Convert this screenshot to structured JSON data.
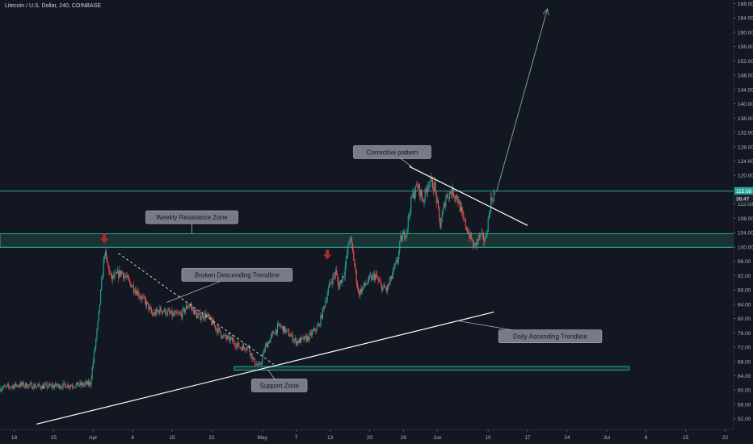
{
  "symbol_title": "Litecoin / U.S. Dollar, 240, COINBASE",
  "colors": {
    "background": "#131722",
    "up": "#26a69a",
    "down": "#ef5350",
    "zone_stroke": "#26a69a",
    "zone_fill": "#1b3433",
    "axis_text": "#b2b5be",
    "trend_white": "#ffffff",
    "arrow": "#7a9e8e",
    "callout_fill": "#787b86",
    "callout_text": "#131722",
    "price_tag_1": "#26a69a",
    "price_tag_2": "#1e222d"
  },
  "chart_data": {
    "type": "candlestick",
    "x_axis": {
      "ticks": [
        {
          "label": "18",
          "day": -14
        },
        {
          "label": "25",
          "day": -7
        },
        {
          "label": "Apr",
          "day": 0
        },
        {
          "label": "8",
          "day": 7
        },
        {
          "label": "15",
          "day": 14
        },
        {
          "label": "22",
          "day": 21
        },
        {
          "label": "May",
          "day": 30
        },
        {
          "label": "7",
          "day": 36
        },
        {
          "label": "13",
          "day": 42
        },
        {
          "label": "20",
          "day": 49
        },
        {
          "label": "26",
          "day": 55
        },
        {
          "label": "Jun",
          "day": 61
        },
        {
          "label": "10",
          "day": 70
        },
        {
          "label": "17",
          "day": 77
        },
        {
          "label": "24",
          "day": 84
        },
        {
          "label": "Jul",
          "day": 91
        },
        {
          "label": "8",
          "day": 98
        },
        {
          "label": "15",
          "day": 105
        },
        {
          "label": "22",
          "day": 112
        }
      ],
      "range_days": [
        -16.5,
        113.5
      ]
    },
    "y_axis": {
      "min": 49,
      "max": 169,
      "ticks": [
        52,
        56,
        60,
        64,
        68,
        72,
        76,
        80,
        84,
        88,
        92,
        96,
        100,
        104,
        108,
        112,
        116,
        120,
        124,
        128,
        132,
        136,
        140,
        144,
        148,
        152,
        156,
        160,
        164,
        168
      ]
    },
    "price_path": [
      [
        -16.5,
        60.5
      ],
      [
        -13,
        61.5
      ],
      [
        -9,
        61
      ],
      [
        -5,
        61.3
      ],
      [
        -2,
        61.5
      ],
      [
        -0.5,
        61.8
      ],
      [
        0.8,
        78
      ],
      [
        2,
        98.5
      ],
      [
        3.2,
        91
      ],
      [
        5,
        93
      ],
      [
        6.5,
        90
      ],
      [
        8,
        87
      ],
      [
        9.5,
        84
      ],
      [
        10.5,
        81
      ],
      [
        12,
        82.5
      ],
      [
        14,
        81
      ],
      [
        15.5,
        81
      ],
      [
        17,
        84
      ],
      [
        18.5,
        80.5
      ],
      [
        20,
        81
      ],
      [
        21.5,
        78
      ],
      [
        23,
        75
      ],
      [
        24.5,
        74
      ],
      [
        26,
        72
      ],
      [
        27.5,
        72
      ],
      [
        28.5,
        68
      ],
      [
        29.5,
        66.5
      ],
      [
        30.5,
        72
      ],
      [
        32,
        76
      ],
      [
        33,
        78
      ],
      [
        34.5,
        76
      ],
      [
        36,
        73.5
      ],
      [
        38,
        74.5
      ],
      [
        40,
        78
      ],
      [
        41,
        84
      ],
      [
        42,
        90
      ],
      [
        43,
        93
      ],
      [
        43.5,
        89
      ],
      [
        44.5,
        93
      ],
      [
        45.5,
        103
      ],
      [
        46,
        98.5
      ],
      [
        47,
        87
      ],
      [
        48,
        89
      ],
      [
        49,
        91
      ],
      [
        50,
        92
      ],
      [
        51,
        89
      ],
      [
        52,
        88
      ],
      [
        53,
        92
      ],
      [
        54,
        97
      ],
      [
        54.5,
        102
      ],
      [
        55.5,
        104.5
      ],
      [
        56.5,
        114
      ],
      [
        57.5,
        117
      ],
      [
        58.5,
        113
      ],
      [
        59.5,
        118.5
      ],
      [
        60.5,
        117
      ],
      [
        61.5,
        106
      ],
      [
        62.5,
        114
      ],
      [
        63.5,
        115.5
      ],
      [
        64.5,
        114
      ],
      [
        65.5,
        108
      ],
      [
        66.5,
        104
      ],
      [
        67.5,
        100
      ],
      [
        68.5,
        103
      ],
      [
        69.5,
        102
      ],
      [
        70.5,
        113
      ],
      [
        71.3,
        115.5
      ]
    ],
    "horizontal_lines": [
      {
        "price": 115.6,
        "style": "solid"
      },
      {
        "price": 103.7,
        "style": "solid"
      },
      {
        "price": 99.9,
        "style": "solid"
      }
    ],
    "zones": [
      {
        "name": "Weekly Resistance Zone",
        "price_top": 103.7,
        "price_bottom": 99.9,
        "day_start": -16.5,
        "day_end": 113.5
      },
      {
        "name": "Support Zone",
        "price_top": 66.6,
        "price_bottom": 65.6,
        "day_start": 25,
        "day_end": 95
      }
    ],
    "trendlines": [
      {
        "name": "Broken Descending Trendline",
        "style": "dashed",
        "from": [
          4.5,
          98.2
        ],
        "to": [
          32,
          67.2
        ]
      },
      {
        "name": "Daily Ascending Trendline",
        "style": "solid",
        "from": [
          -10,
          50.5
        ],
        "to": [
          71,
          81.8
        ]
      },
      {
        "name": "Corrective pattern",
        "style": "solid",
        "from": [
          56,
          122.5
        ],
        "to": [
          77,
          106
        ]
      }
    ],
    "projection_arrow": {
      "from": [
        71.5,
        115.5
      ],
      "to": [
        80.5,
        166.5
      ]
    },
    "signal_arrows": [
      {
        "type": "down",
        "day": 2,
        "price": 101
      },
      {
        "type": "down",
        "day": 41.5,
        "price": 96.5
      },
      {
        "type": "up",
        "day": 30,
        "price": 63
      }
    ],
    "annotations": [
      {
        "text": "Corrective pattern",
        "day": 53,
        "price": 126.5,
        "pointer": [
          56.5,
          122.4
        ]
      },
      {
        "text": "Weekly Resistance Zone",
        "day": 17.5,
        "price": 108.3,
        "pointer": [
          17.5,
          103.8
        ]
      },
      {
        "text": "Broken Descending Trendline",
        "day": 25.5,
        "price": 92.2,
        "pointer": [
          13,
          84.5
        ]
      },
      {
        "text": "Daily Ascending Trendline",
        "day": 81,
        "price": 75,
        "pointer": [
          64.5,
          79.4
        ]
      },
      {
        "text": "Support Zone",
        "day": 33,
        "price": 61.3,
        "pointer": [
          31,
          65.6
        ]
      }
    ],
    "price_tags": [
      {
        "text": "115.68",
        "price": 115.6
      },
      {
        "text": "38:47",
        "price": 113.5
      }
    ]
  }
}
